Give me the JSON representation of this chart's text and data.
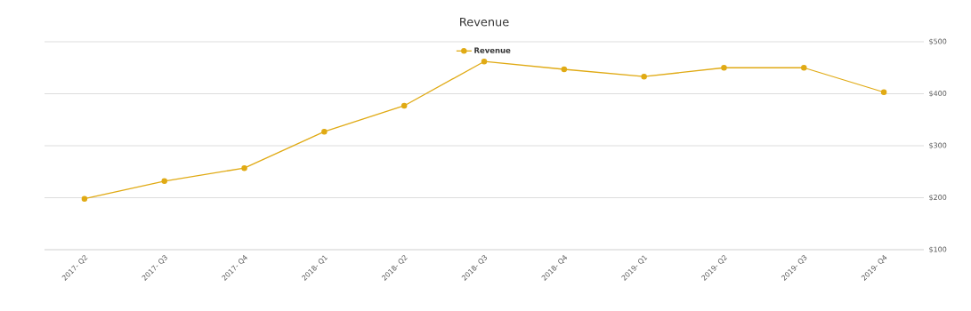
{
  "chart_data": {
    "type": "line",
    "title": "Revenue",
    "categories": [
      "2017- Q2",
      "2017- Q3",
      "2017- Q4",
      "2018- Q1",
      "2018- Q2",
      "2018- Q3",
      "2018- Q4",
      "2019- Q1",
      "2019- Q2",
      "2019- Q3",
      "2019- Q4"
    ],
    "series": [
      {
        "name": "Revenue",
        "color": "#e0aa14",
        "values": [
          198,
          232,
          257,
          327,
          377,
          462,
          447,
          433,
          450,
          450,
          403
        ]
      }
    ],
    "ylim": [
      100,
      500
    ],
    "yticks": [
      {
        "value": 100,
        "label": "$100"
      },
      {
        "value": 200,
        "label": "$200"
      },
      {
        "value": 300,
        "label": "$300"
      },
      {
        "value": 400,
        "label": "$400"
      },
      {
        "value": 500,
        "label": "$500"
      }
    ],
    "grid": "y",
    "legend": "top",
    "marker": "circle",
    "line_style": "solid"
  }
}
